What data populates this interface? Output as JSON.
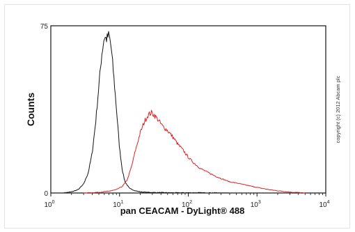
{
  "chart_data": {
    "type": "line",
    "title": "",
    "xlabel": "pan CEACAM - DyLight® 488",
    "ylabel": "Counts",
    "xscale": "log",
    "xlim": [
      1,
      10000
    ],
    "ylim": [
      0,
      75
    ],
    "y_ticks": [
      "0",
      "75"
    ],
    "x_ticks": [
      {
        "base": "10",
        "exp": "0"
      },
      {
        "base": "10",
        "exp": "1"
      },
      {
        "base": "10",
        "exp": "2"
      },
      {
        "base": "10",
        "exp": "3"
      },
      {
        "base": "10",
        "exp": "4"
      }
    ],
    "grid": false,
    "legend": "none",
    "annotation": "copyright (c) 2012 Abcam plc",
    "series": [
      {
        "color": "#111111",
        "x": [
          1.5,
          2,
          2.5,
          3,
          3.5,
          4,
          4.5,
          5,
          5.5,
          6,
          6.5,
          7,
          7.5,
          8,
          9,
          10,
          11,
          12,
          14,
          17,
          20,
          25,
          35,
          60,
          150,
          500,
          2000
        ],
        "y": [
          0,
          0.5,
          1.5,
          4,
          9,
          18,
          32,
          48,
          62,
          70,
          69,
          71,
          66,
          57,
          38,
          20,
          10,
          5,
          2,
          1,
          0.5,
          0.3,
          0.2,
          0.1,
          0.1,
          0,
          0
        ]
      },
      {
        "color": "#e02020",
        "x": [
          3,
          5,
          7,
          9,
          11,
          13,
          15,
          17,
          20,
          23,
          26,
          29,
          32,
          36,
          42,
          50,
          60,
          70,
          85,
          100,
          120,
          150,
          200,
          250,
          300,
          400,
          500,
          700,
          1000,
          1500,
          2000,
          3000,
          4000,
          5000
        ],
        "y": [
          0,
          0.3,
          0.8,
          1.5,
          3,
          6,
          12,
          19,
          27,
          32,
          35,
          36,
          35,
          33,
          30,
          28,
          25,
          22,
          19,
          16,
          13.5,
          11,
          9,
          7.5,
          6.5,
          5,
          4.5,
          3.5,
          2.5,
          1.5,
          1,
          0.4,
          0.2,
          0
        ]
      }
    ]
  }
}
